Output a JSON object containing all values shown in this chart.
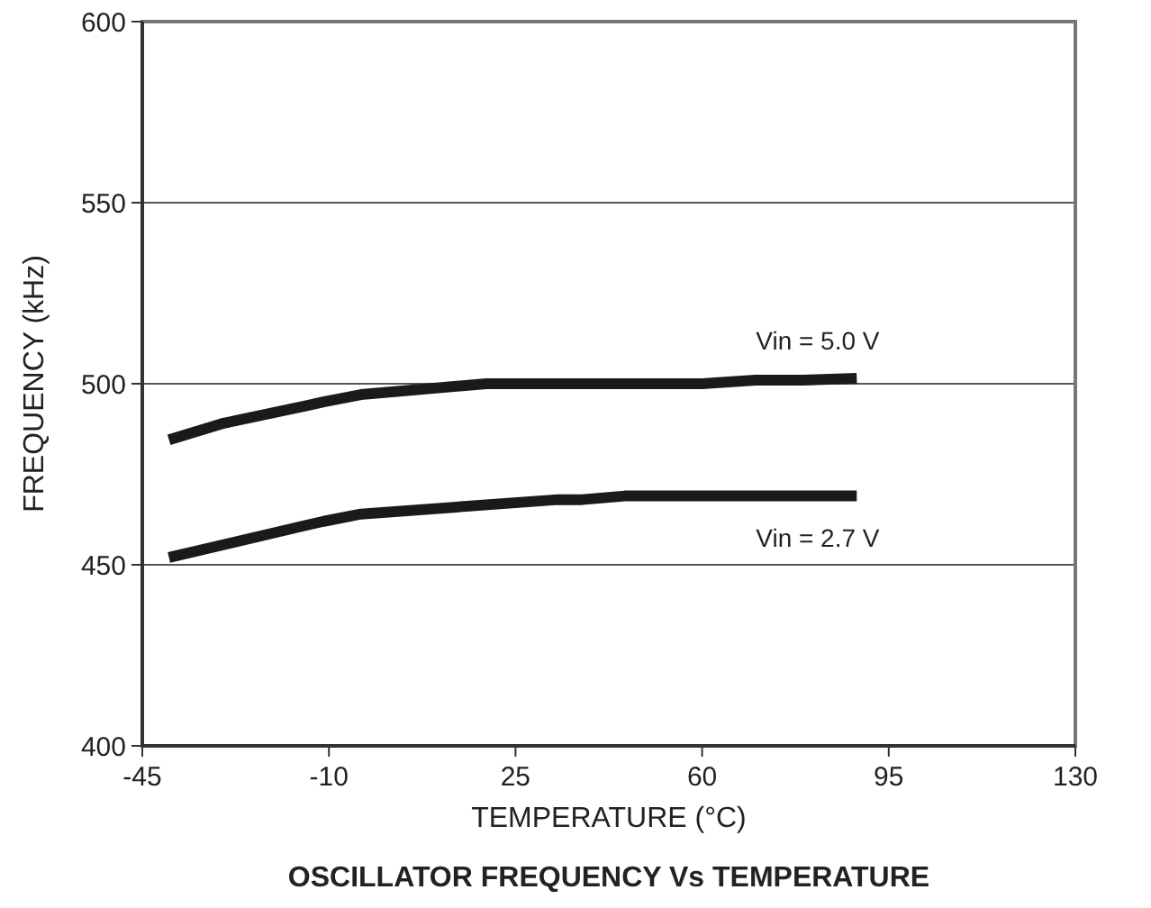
{
  "chart_data": {
    "type": "line",
    "title": "OSCILLATOR FREQUENCY Vs TEMPERATURE",
    "xlabel": "TEMPERATURE  (°C)",
    "ylabel": "FREQUENCY (kHz)",
    "xlim": [
      -45,
      130
    ],
    "xticks": [
      -45,
      -10,
      25,
      60,
      95,
      130
    ],
    "ylim": [
      400,
      600
    ],
    "yticks": [
      400,
      450,
      500,
      550,
      600
    ],
    "grid": "y",
    "line_style": "solid",
    "marker": "none",
    "series": [
      {
        "name": "Vin = 5.0 V",
        "color": "#1a1a1a",
        "x": [
          -40,
          -30,
          -14,
          -11,
          -4,
          19.5,
          60,
          70,
          79,
          89
        ],
        "values": [
          484.5,
          489,
          494,
          495,
          497,
          500,
          500,
          501,
          501,
          501.5
        ]
      },
      {
        "name": "Vin = 2.7 V",
        "color": "#1a1a1a",
        "x": [
          -40,
          -14,
          -11,
          -4,
          33,
          37.5,
          45.5,
          89
        ],
        "values": [
          452,
          461,
          462,
          464,
          468,
          468,
          469,
          469
        ]
      }
    ]
  }
}
